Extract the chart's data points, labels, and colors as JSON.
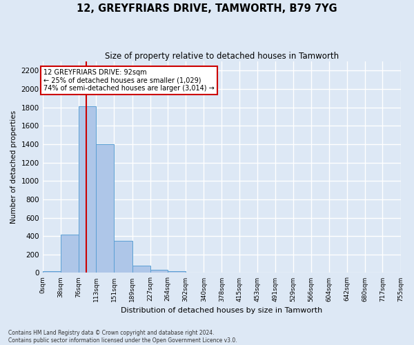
{
  "title": "12, GREYFRIARS DRIVE, TAMWORTH, B79 7YG",
  "subtitle": "Size of property relative to detached houses in Tamworth",
  "xlabel": "Distribution of detached houses by size in Tamworth",
  "ylabel": "Number of detached properties",
  "bar_color": "#aec6e8",
  "bar_edge_color": "#5a9fd4",
  "background_color": "#dde8f5",
  "fig_background_color": "#dde8f5",
  "grid_color": "#ffffff",
  "bin_labels": [
    "0sqm",
    "38sqm",
    "76sqm",
    "113sqm",
    "151sqm",
    "189sqm",
    "227sqm",
    "264sqm",
    "302sqm",
    "340sqm",
    "378sqm",
    "415sqm",
    "453sqm",
    "491sqm",
    "529sqm",
    "566sqm",
    "604sqm",
    "642sqm",
    "680sqm",
    "717sqm",
    "755sqm"
  ],
  "bar_values": [
    15,
    420,
    1810,
    1400,
    350,
    80,
    30,
    20,
    0,
    0,
    0,
    0,
    0,
    0,
    0,
    0,
    0,
    0,
    0,
    0
  ],
  "ylim": [
    0,
    2300
  ],
  "yticks": [
    0,
    200,
    400,
    600,
    800,
    1000,
    1200,
    1400,
    1600,
    1800,
    2000,
    2200
  ],
  "property_line_x": 92,
  "bin_edges": [
    0,
    38,
    76,
    113,
    151,
    189,
    227,
    264,
    302,
    340,
    378,
    415,
    453,
    491,
    529,
    566,
    604,
    642,
    680,
    717,
    755
  ],
  "annotation_box_text": "12 GREYFRIARS DRIVE: 92sqm\n← 25% of detached houses are smaller (1,029)\n74% of semi-detached houses are larger (3,014) →",
  "annotation_box_color": "#ffffff",
  "annotation_box_edge_color": "#cc0000",
  "property_line_color": "#cc0000",
  "footer_line1": "Contains HM Land Registry data © Crown copyright and database right 2024.",
  "footer_line2": "Contains public sector information licensed under the Open Government Licence v3.0."
}
